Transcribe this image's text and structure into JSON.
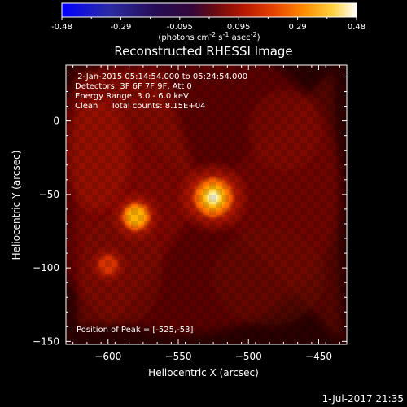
{
  "chart_data": {
    "type": "heatmap",
    "title": "Reconstructed RHESSI Image",
    "xlabel": "Heliocentric X (arcsec)",
    "ylabel": "Heliocentric Y (arcsec)",
    "xlim": [
      -630,
      -430
    ],
    "ylim": [
      -152,
      38
    ],
    "x_ticks": [
      -600,
      -550,
      -500,
      -450
    ],
    "y_ticks": [
      0,
      -50,
      -100,
      -150
    ],
    "colorbar": {
      "ticks": [
        "-0.48",
        "-0.29",
        "-0.095",
        "0.095",
        "0.29",
        "0.48"
      ],
      "min": -0.48,
      "max": 0.48,
      "units_html": "(photons cm<tspan baseline-shift=\"super\" font-size=\"8\">-2</tspan> s<tspan baseline-shift=\"super\" font-size=\"8\">-1</tspan> asec<tspan baseline-shift=\"super\" font-size=\"8\">-2</tspan>)"
    },
    "info_lines": [
      " 2-Jan-2015 05:14:54.000 to 05:24:54.000",
      "Detectors: 3F 6F 7F 9F, Att 0",
      "Energy Range: 3.0 - 6.0 keV",
      "Clean     Total counts: 8.15E+04"
    ],
    "peak_label": "Position of Peak = [-525,-53]",
    "sources": [
      {
        "x": -525,
        "y": -52,
        "intensity": 0.48
      },
      {
        "x": -580,
        "y": -65,
        "intensity": 0.27
      },
      {
        "x": -600,
        "y": -98,
        "intensity": 0.12
      }
    ]
  },
  "footer": {
    "timestamp": "1-Jul-2017 21:35"
  }
}
